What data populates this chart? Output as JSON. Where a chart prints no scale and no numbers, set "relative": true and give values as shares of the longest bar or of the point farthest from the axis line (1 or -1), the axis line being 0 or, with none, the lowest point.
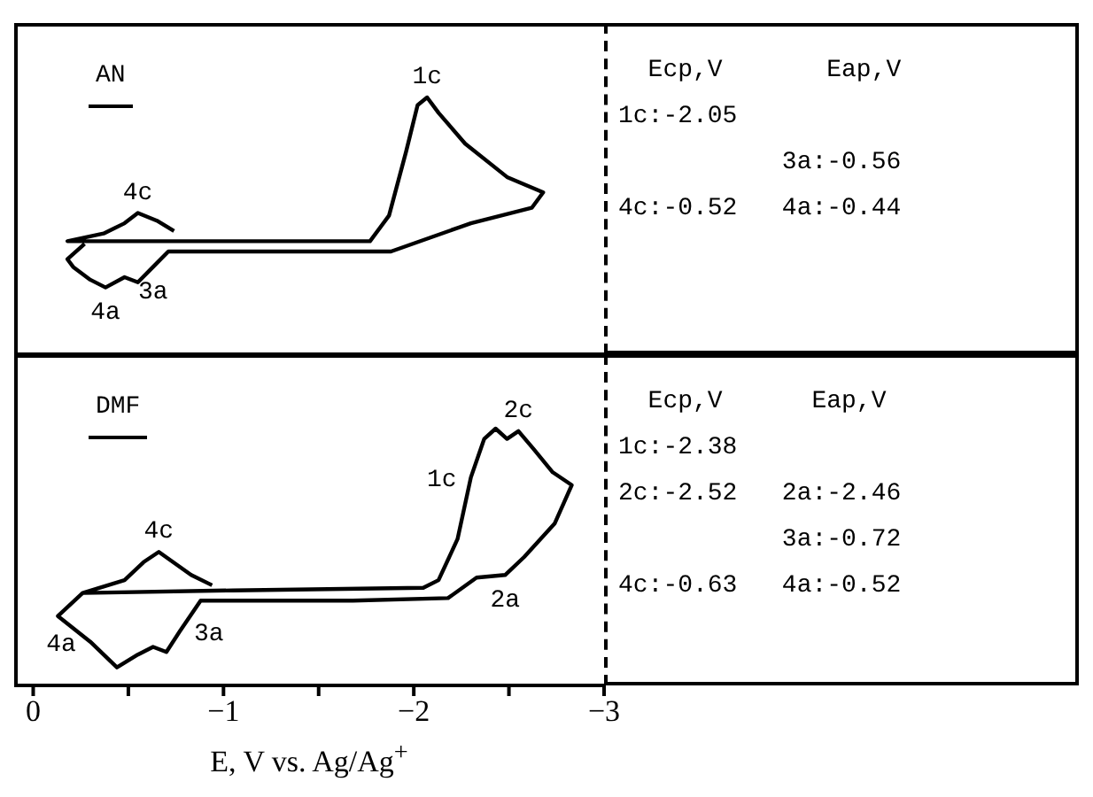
{
  "chart_data": [
    {
      "type": "line",
      "relative": true,
      "marker": "none",
      "line_style": "solid",
      "tick_labels": false,
      "xlim": [
        0.1,
        -3
      ],
      "xticks": [
        0,
        {
          "value": -0.5,
          "label": null
        },
        -1,
        {
          "value": -1.5,
          "label": null
        },
        -2,
        {
          "value": -2.5,
          "label": null
        },
        -3
      ],
      "x": [
        -0.74,
        -0.65,
        -0.55,
        -0.48,
        -0.37,
        -0.18,
        -1.05,
        -1.77,
        -1.87,
        -1.96,
        -2.02,
        -2.07,
        -2.13,
        -2.27,
        -2.49,
        -2.68,
        -2.62,
        -2.3,
        -1.88,
        -1.21,
        -0.71,
        -0.63,
        -0.55,
        -0.48,
        -0.38,
        -0.3,
        -0.21,
        -0.18,
        -0.27
      ],
      "series": [
        {
          "color": "#000000",
          "values": [
            0.48,
            0.52,
            0.55,
            0.51,
            0.47,
            0.44,
            0.44,
            0.44,
            0.54,
            0.79,
            0.97,
            1.0,
            0.94,
            0.82,
            0.69,
            0.63,
            0.57,
            0.51,
            0.4,
            0.4,
            0.4,
            0.34,
            0.28,
            0.3,
            0.26,
            0.29,
            0.34,
            0.37,
            0.43
          ]
        }
      ],
      "annotations": [
        "AN",
        {
          "text": "1c",
          "x": -2.07,
          "y": 1.0
        },
        {
          "text": "4c",
          "x": -0.55,
          "y": 0.55
        },
        {
          "text": "4a",
          "x": -0.38,
          "y": 0.26
        },
        {
          "text": "3a",
          "x": -0.63,
          "y": 0.34
        },
        "  Ecp,V       Eap,V",
        "1c:-2.05",
        "           3a:-0.56",
        "4c:-0.52   4a:-0.44"
      ]
    },
    {
      "type": "line",
      "relative": true,
      "marker": "none",
      "line_style": "solid",
      "tick_labels": "x",
      "xlabel": "E, V vs. Ag/Ag$^{+}$",
      "xlim": [
        0.1,
        -3
      ],
      "xticks": [
        0,
        {
          "value": -0.5,
          "label": null
        },
        -1,
        {
          "value": -1.5,
          "label": null
        },
        -2,
        {
          "value": -2.5,
          "label": null
        },
        -3
      ],
      "x": [
        -0.94,
        -0.83,
        -0.66,
        -0.58,
        -0.48,
        -0.26,
        -1.05,
        -2.05,
        -2.13,
        -2.23,
        -2.3,
        -2.37,
        -2.43,
        -2.49,
        -2.55,
        -2.63,
        -2.73,
        -2.83,
        -2.74,
        -2.58,
        -2.48,
        -2.33,
        -2.18,
        -1.68,
        -0.88,
        -0.77,
        -0.7,
        -0.63,
        -0.55,
        -0.44,
        -0.3,
        -0.13,
        -0.26
      ],
      "series": [
        {
          "color": "#000000",
          "values": [
            0.39,
            0.43,
            0.52,
            0.48,
            0.41,
            0.36,
            0.37,
            0.38,
            0.41,
            0.57,
            0.81,
            0.96,
            1.0,
            0.96,
            0.99,
            0.92,
            0.83,
            0.78,
            0.63,
            0.5,
            0.43,
            0.42,
            0.34,
            0.33,
            0.33,
            0.21,
            0.13,
            0.15,
            0.12,
            0.07,
            0.17,
            0.27,
            0.36
          ]
        }
      ],
      "annotations": [
        "DMF",
        {
          "text": "1c",
          "x": -2.3,
          "y": 0.81
        },
        {
          "text": "2c",
          "x": -2.55,
          "y": 0.99
        },
        {
          "text": "2a",
          "x": -2.48,
          "y": 0.43
        },
        {
          "text": "4c",
          "x": -0.66,
          "y": 0.52
        },
        {
          "text": "4a",
          "x": -0.3,
          "y": 0.17
        },
        {
          "text": "3a",
          "x": -0.77,
          "y": 0.21
        },
        "  Ecp,V      Eap,V",
        "1c:-2.38",
        "2c:-2.52   2a:-2.46",
        "           3a:-0.72",
        "4c:-0.63   4a:-0.52"
      ]
    }
  ]
}
